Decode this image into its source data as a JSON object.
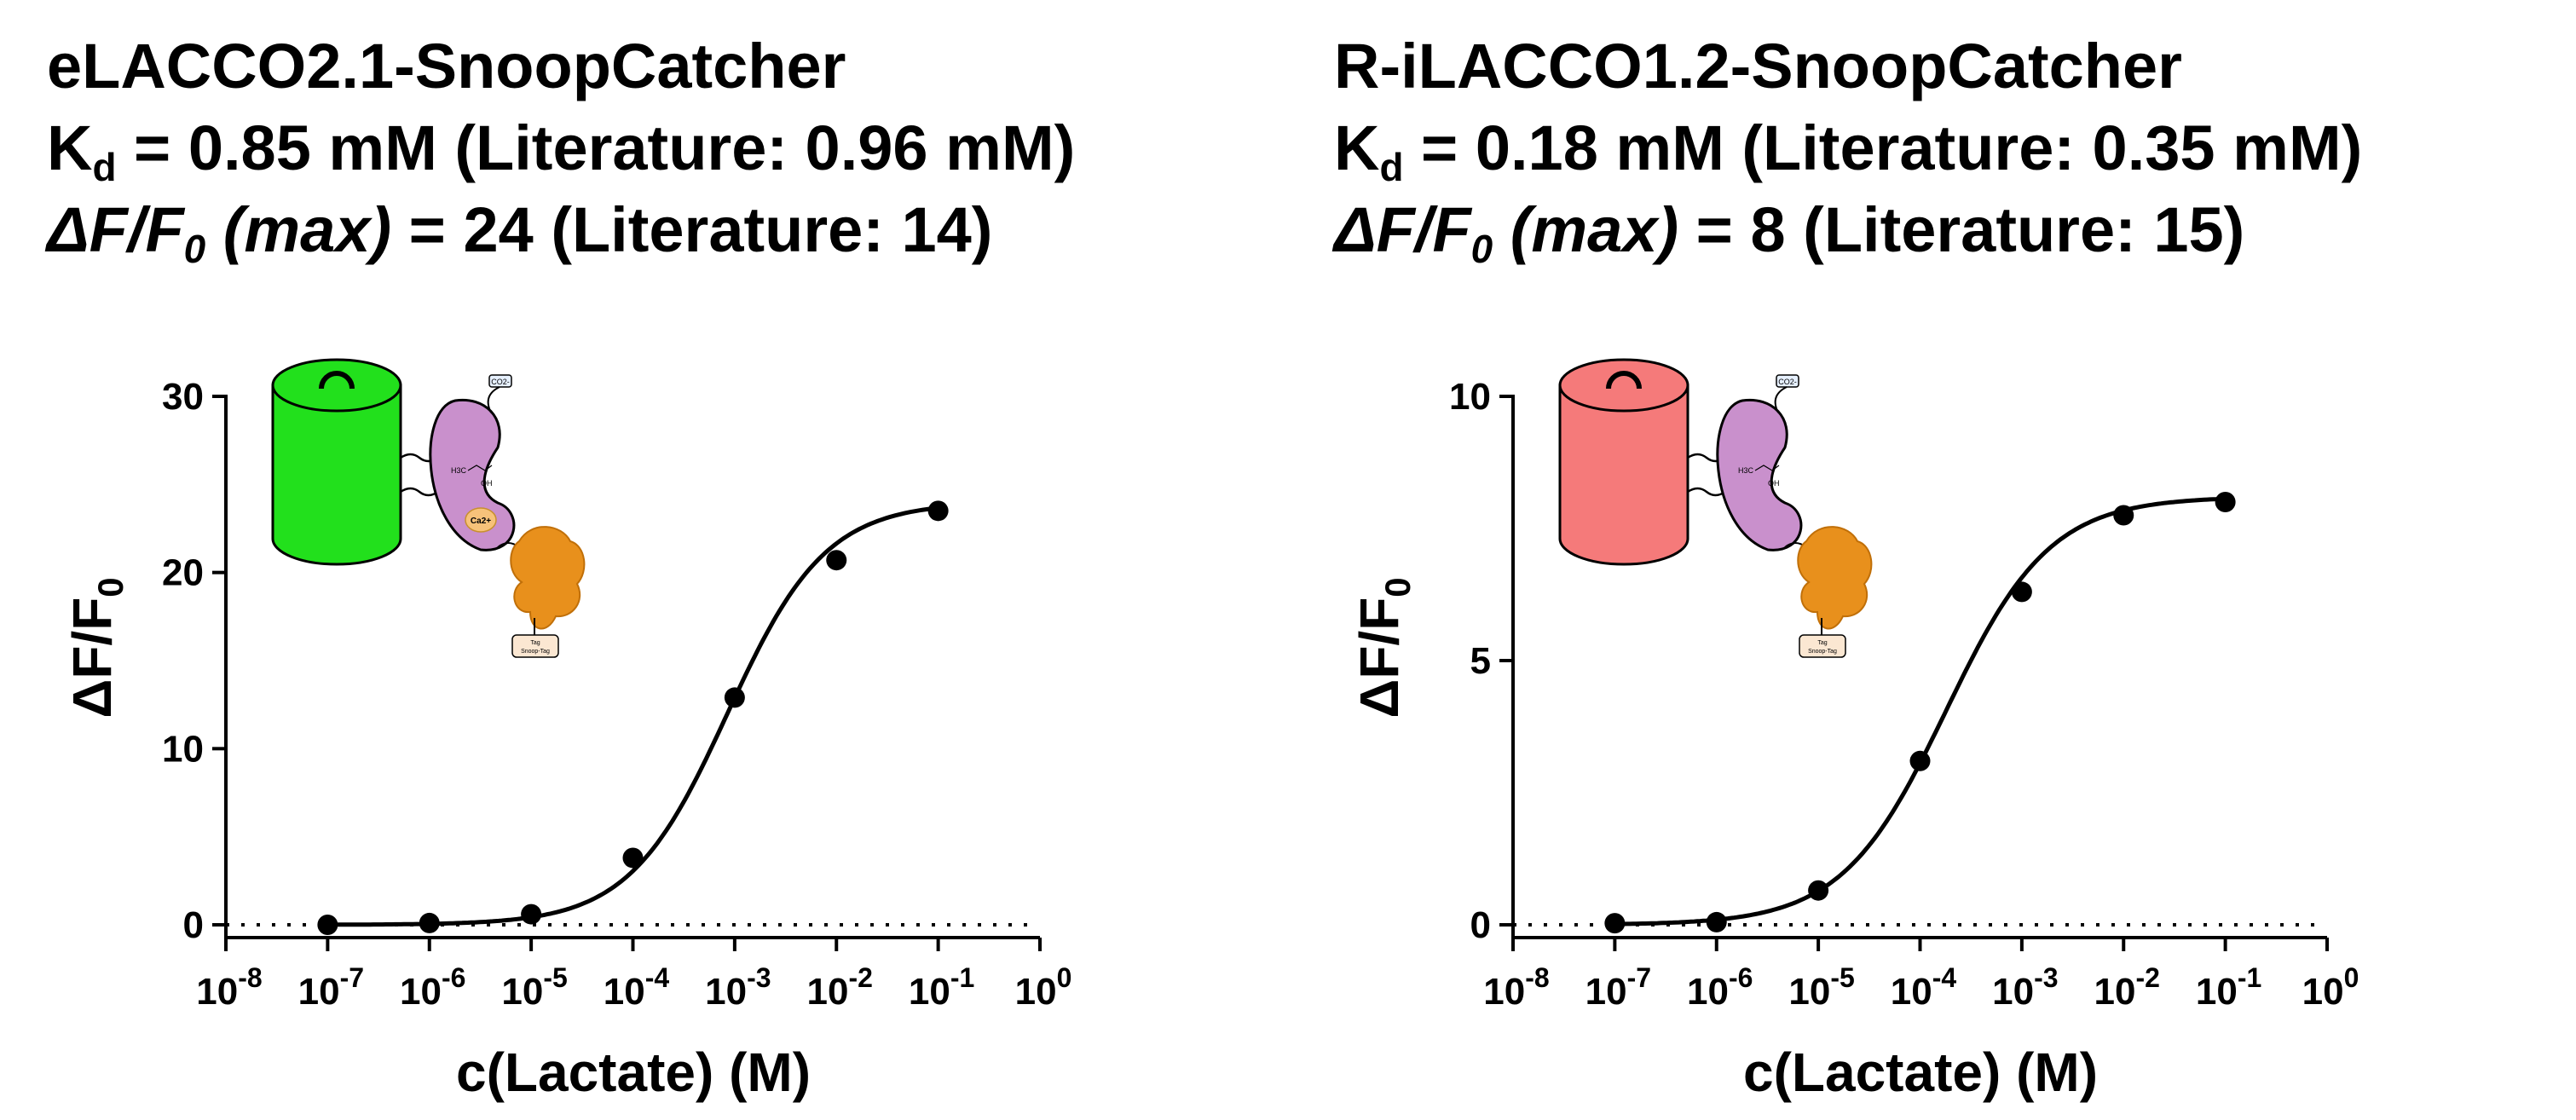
{
  "chart_data": [
    {
      "type": "scatter",
      "title_lines": [
        "eLACCO2.1-SnoopCatcher",
        "K",
        "d",
        " = 0.85 mM (Literature: 0.96 mM)",
        "ΔF/F",
        "0",
        " (max)",
        " = 24 (Literature: 14)"
      ],
      "xlabel": "c(Lactate) (M)",
      "ylabel_main": "ΔF/F",
      "ylabel_sub": "0",
      "x_scale": "log",
      "xlim": [
        1e-08,
        1
      ],
      "ylim": [
        0,
        30
      ],
      "x_ticks": [
        "10-8",
        "10-7",
        "10-6",
        "10-5",
        "10-4",
        "10-3",
        "10-2",
        "10-1",
        "100"
      ],
      "y_ticks": [
        "0",
        "10",
        "20",
        "30"
      ],
      "baseline_dotted": 0,
      "legend": "none",
      "grid": false,
      "marker_color": "#000000",
      "illustration_color": "#22e01c",
      "points": [
        {
          "x": 1e-07,
          "y": 0.0
        },
        {
          "x": 1e-06,
          "y": 0.1
        },
        {
          "x": 1e-05,
          "y": 0.6
        },
        {
          "x": 0.0001,
          "y": 3.8
        },
        {
          "x": 0.001,
          "y": 12.9
        },
        {
          "x": 0.01,
          "y": 20.7
        },
        {
          "x": 0.1,
          "y": 23.5
        }
      ],
      "fit_curve": {
        "model": "hill",
        "kd": 0.00085,
        "max": 24,
        "n": 0.9
      },
      "figure_labels": [
        "CO2-",
        "Ca2+",
        "H3C",
        "OH",
        "Tag",
        "Snoop-Tag"
      ]
    },
    {
      "type": "scatter",
      "title_lines": [
        "R-iLACCO1.2-SnoopCatcher",
        "K",
        "d",
        " = 0.18 mM (Literature: 0.35 mM)",
        "ΔF/F",
        "0",
        " (max)",
        " = 8 (Literature: 15)"
      ],
      "xlabel": "c(Lactate) (M)",
      "ylabel_main": "ΔF/F",
      "ylabel_sub": "0",
      "x_scale": "log",
      "xlim": [
        1e-08,
        1
      ],
      "ylim": [
        0,
        10
      ],
      "x_ticks": [
        "10-8",
        "10-7",
        "10-6",
        "10-5",
        "10-4",
        "10-3",
        "10-2",
        "10-1",
        "100"
      ],
      "y_ticks": [
        "0",
        "5",
        "10"
      ],
      "baseline_dotted": 0,
      "legend": "none",
      "grid": false,
      "marker_color": "#000000",
      "illustration_color": "#f57a7a",
      "points": [
        {
          "x": 1e-07,
          "y": 0.03
        },
        {
          "x": 1e-06,
          "y": 0.05
        },
        {
          "x": 1e-05,
          "y": 0.65
        },
        {
          "x": 0.0001,
          "y": 3.1
        },
        {
          "x": 0.001,
          "y": 6.3
        },
        {
          "x": 0.01,
          "y": 7.75
        },
        {
          "x": 0.1,
          "y": 8.0
        }
      ],
      "fit_curve": {
        "model": "hill",
        "kd": 0.00018,
        "max": 8.1,
        "n": 0.85
      },
      "figure_labels": [
        "CO2-",
        "H3C",
        "OH",
        "Tag",
        "Snoop-Tag"
      ]
    }
  ]
}
